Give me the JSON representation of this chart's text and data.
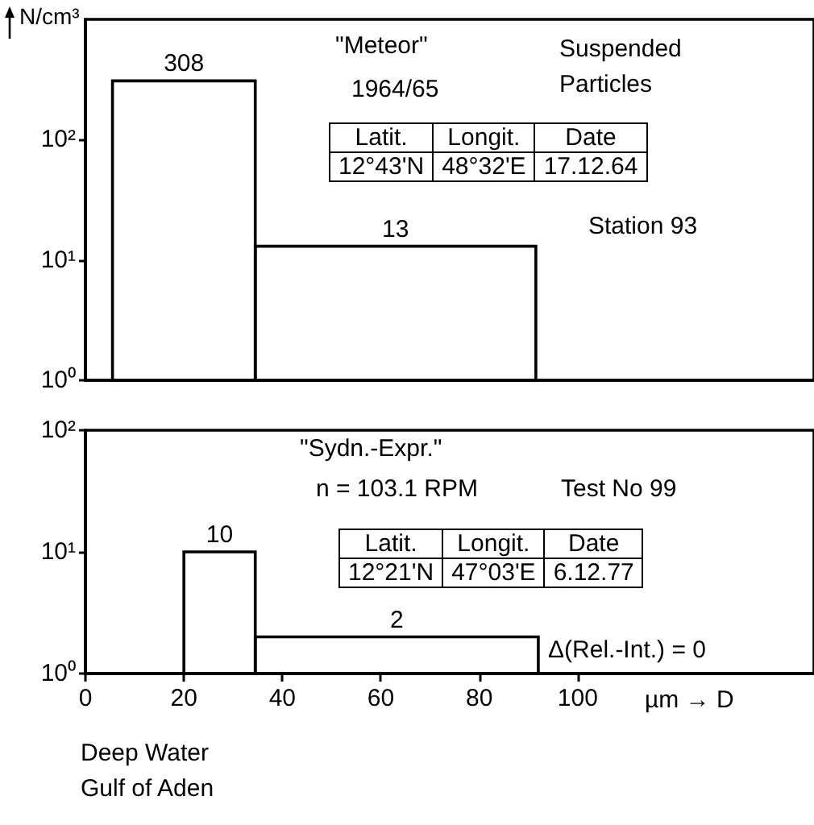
{
  "chart_data": [
    {
      "type": "histogram",
      "ylabel": "N/cm³",
      "bins": [
        5.5,
        34.5,
        91.5
      ],
      "values": [
        308,
        13
      ],
      "color": "#000000",
      "data_labels": true,
      "log": "y",
      "grid": false,
      "tick_labels": "y",
      "xlim": [
        0,
        148
      ],
      "ylim": [
        1,
        1000
      ],
      "yticks": [
        {
          "value": 1,
          "label": "10⁰"
        },
        {
          "value": 10,
          "label": "10¹"
        },
        {
          "value": 100,
          "label": "10²"
        }
      ],
      "annotations": [
        "\"Meteor\"",
        "1964/65",
        "Suspended Particles",
        "Latit.",
        "Longit.",
        "Date",
        "12°43'N",
        "48°32'E",
        "17.12.64",
        "Station 93"
      ]
    },
    {
      "type": "histogram",
      "xlabel": "µm → D",
      "bins": [
        20,
        34.5,
        92
      ],
      "values": [
        10,
        2
      ],
      "color": "#000000",
      "data_labels": true,
      "log": "y",
      "grid": false,
      "xlim": [
        0,
        148
      ],
      "ylim": [
        1,
        100
      ],
      "xticks": [
        0,
        20,
        40,
        60,
        80,
        100
      ],
      "yticks": [
        {
          "value": 1,
          "label": "10⁰"
        },
        {
          "value": 10,
          "label": "10¹"
        },
        {
          "value": 100,
          "label": "10²"
        }
      ],
      "annotations": [
        "\"Sydn.-Expr.\"",
        "n = 103.1 RPM",
        "Test No 99",
        "Latit.",
        "Longit.",
        "Date",
        "12°21'N",
        "47°03'E",
        "6.12.77",
        "Δ(Rel.-Int.) = 0",
        "Deep Water Gulf of Aden"
      ]
    }
  ]
}
